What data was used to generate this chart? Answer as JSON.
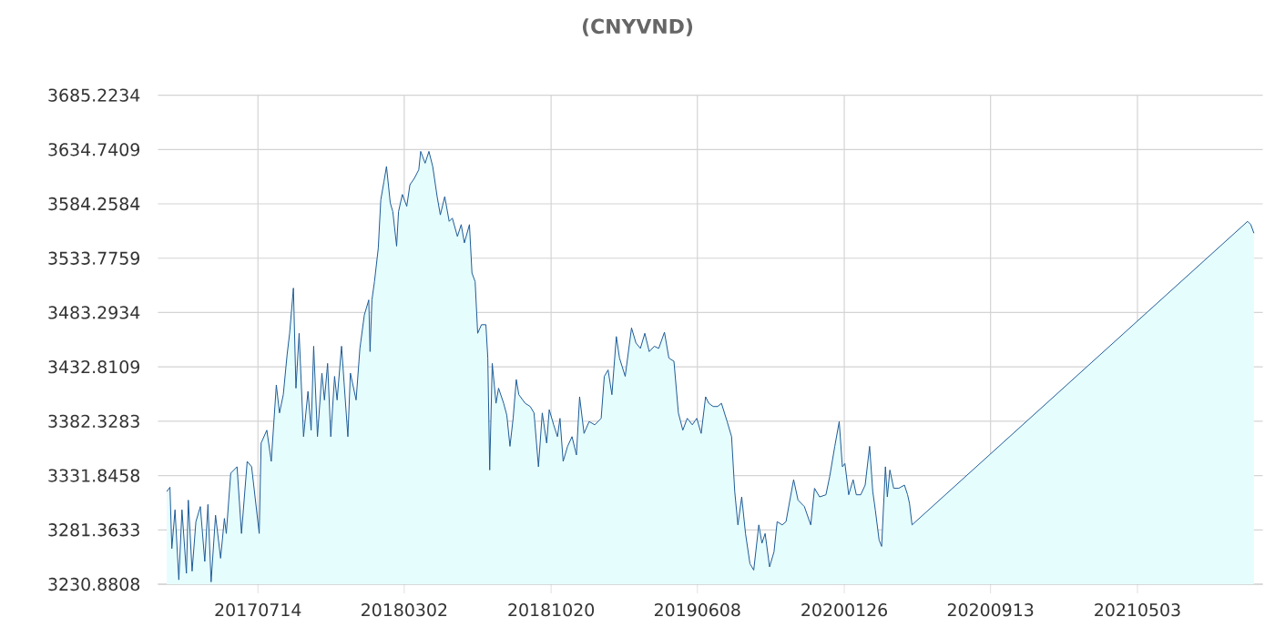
{
  "chart_data": {
    "type": "area",
    "title": "(CNYVND)",
    "x": [
      "2017-02-20",
      "2017-02-25",
      "2017-02-28",
      "2017-03-05",
      "2017-03-11",
      "2017-03-16",
      "2017-03-23",
      "2017-03-26",
      "2017-04-01",
      "2017-04-07",
      "2017-04-14",
      "2017-04-21",
      "2017-04-26",
      "2017-05-01",
      "2017-05-08",
      "2017-05-16",
      "2017-05-22",
      "2017-05-25",
      "2017-06-01",
      "2017-06-11",
      "2017-06-18",
      "2017-06-27",
      "2017-07-04",
      "2017-07-16",
      "2017-07-19",
      "2017-07-28",
      "2017-08-04",
      "2017-08-12",
      "2017-08-17",
      "2017-08-23",
      "2017-08-29",
      "2017-09-02",
      "2017-09-08",
      "2017-09-12",
      "2017-09-17",
      "2017-09-24",
      "2017-10-01",
      "2017-10-06",
      "2017-10-10",
      "2017-10-16",
      "2017-10-23",
      "2017-10-27",
      "2017-11-01",
      "2017-11-06",
      "2017-11-12",
      "2017-11-16",
      "2017-11-23",
      "2017-12-03",
      "2017-12-07",
      "2017-12-16",
      "2017-12-22",
      "2017-12-29",
      "2018-01-05",
      "2018-01-07",
      "2018-01-10",
      "2018-01-14",
      "2018-01-20",
      "2018-01-24",
      "2018-01-29",
      "2018-02-02",
      "2018-02-08",
      "2018-02-12",
      "2018-02-18",
      "2018-02-21",
      "2018-02-27",
      "2018-03-06",
      "2018-03-11",
      "2018-03-18",
      "2018-03-25",
      "2018-03-28",
      "2018-04-04",
      "2018-04-10",
      "2018-04-16",
      "2018-04-23",
      "2018-04-28",
      "2018-05-05",
      "2018-05-12",
      "2018-05-17",
      "2018-05-25",
      "2018-05-31",
      "2018-06-05",
      "2018-06-13",
      "2018-06-17",
      "2018-06-22",
      "2018-06-26",
      "2018-07-02",
      "2018-07-09",
      "2018-07-12",
      "2018-07-15",
      "2018-07-19",
      "2018-07-25",
      "2018-07-29",
      "2018-08-06",
      "2018-08-11",
      "2018-08-16",
      "2018-08-21",
      "2018-08-26",
      "2018-08-30",
      "2018-09-09",
      "2018-09-17",
      "2018-09-23",
      "2018-09-30",
      "2018-10-06",
      "2018-10-13",
      "2018-10-17",
      "2018-10-24",
      "2018-10-30",
      "2018-11-03",
      "2018-11-08",
      "2018-11-15",
      "2018-11-22",
      "2018-11-29",
      "2018-12-04",
      "2018-12-11",
      "2018-12-19",
      "2018-12-28",
      "2019-01-07",
      "2019-01-12",
      "2019-01-18",
      "2019-01-24",
      "2019-01-31",
      "2019-02-05",
      "2019-02-14",
      "2019-02-24",
      "2019-03-03",
      "2019-03-10",
      "2019-03-17",
      "2019-03-24",
      "2019-04-01",
      "2019-04-08",
      "2019-04-17",
      "2019-04-24",
      "2019-05-02",
      "2019-05-09",
      "2019-05-16",
      "2019-05-23",
      "2019-05-31",
      "2019-06-07",
      "2019-06-14",
      "2019-06-21",
      "2019-06-26",
      "2019-07-03",
      "2019-07-10",
      "2019-07-16",
      "2019-07-25",
      "2019-08-01",
      "2019-08-06",
      "2019-08-11",
      "2019-08-17",
      "2019-08-23",
      "2019-08-30",
      "2019-09-05",
      "2019-09-13",
      "2019-09-18",
      "2019-09-23",
      "2019-09-30",
      "2019-10-07",
      "2019-10-12",
      "2019-10-20",
      "2019-10-26",
      "2019-11-02",
      "2019-11-07",
      "2019-11-14",
      "2019-11-24",
      "2019-12-04",
      "2019-12-10",
      "2019-12-18",
      "2019-12-28",
      "2020-01-03",
      "2020-01-11",
      "2020-01-18",
      "2020-01-23",
      "2020-01-27",
      "2020-02-02",
      "2020-02-09",
      "2020-02-14",
      "2020-02-21",
      "2020-02-28",
      "2020-03-06",
      "2020-03-11",
      "2020-03-15",
      "2020-03-21",
      "2020-03-25",
      "2020-03-31",
      "2020-04-03",
      "2020-04-07",
      "2020-04-13",
      "2020-04-21",
      "2020-04-30",
      "2020-05-05",
      "2020-05-08",
      "2020-05-12",
      "2021-10-24",
      "2021-10-29",
      "2021-11-03"
    ],
    "values": [
      3317,
      3321,
      3264,
      3300,
      3235,
      3300,
      3241,
      3309,
      3243,
      3289,
      3303,
      3252,
      3305,
      3233,
      3295,
      3255,
      3292,
      3278,
      3334,
      3340,
      3278,
      3345,
      3340,
      3278,
      3362,
      3374,
      3345,
      3416,
      3390,
      3407,
      3444,
      3464,
      3506,
      3413,
      3464,
      3368,
      3410,
      3374,
      3452,
      3368,
      3427,
      3402,
      3436,
      3368,
      3424,
      3402,
      3452,
      3368,
      3427,
      3402,
      3450,
      3481,
      3495,
      3447,
      3495,
      3512,
      3543,
      3588,
      3605,
      3619,
      3585,
      3577,
      3545,
      3577,
      3593,
      3582,
      3602,
      3608,
      3616,
      3633,
      3622,
      3633,
      3619,
      3591,
      3574,
      3591,
      3568,
      3571,
      3554,
      3565,
      3548,
      3565,
      3520,
      3512,
      3464,
      3472,
      3472,
      3441,
      3337,
      3436,
      3399,
      3413,
      3399,
      3388,
      3359,
      3385,
      3421,
      3407,
      3399,
      3396,
      3390,
      3340,
      3390,
      3362,
      3393,
      3379,
      3368,
      3385,
      3345,
      3359,
      3368,
      3351,
      3405,
      3371,
      3382,
      3379,
      3385,
      3424,
      3430,
      3407,
      3461,
      3441,
      3424,
      3469,
      3455,
      3450,
      3464,
      3447,
      3452,
      3450,
      3465,
      3441,
      3438,
      3390,
      3374,
      3385,
      3379,
      3385,
      3371,
      3405,
      3399,
      3396,
      3396,
      3399,
      3382,
      3368,
      3317,
      3286,
      3312,
      3278,
      3250,
      3244,
      3286,
      3269,
      3278,
      3247,
      3261,
      3289,
      3286,
      3289,
      3312,
      3328,
      3309,
      3303,
      3286,
      3320,
      3312,
      3314,
      3331,
      3359,
      3382,
      3340,
      3343,
      3314,
      3328,
      3314,
      3314,
      3323,
      3359,
      3317,
      3300,
      3272,
      3266,
      3340,
      3312,
      3337,
      3320,
      3320,
      3323,
      3314,
      3306,
      3286,
      3568,
      3565,
      3557
    ],
    "color": "#1d5a96",
    "xlim": [
      "2017-02-06",
      "2021-11-17"
    ],
    "xticks": [
      {
        "value": "2017-07-14",
        "label": "20170714"
      },
      {
        "value": "2018-03-02",
        "label": "20180302"
      },
      {
        "value": "2018-10-20",
        "label": "20181020"
      },
      {
        "value": "2019-06-08",
        "label": "20190608"
      },
      {
        "value": "2020-01-26",
        "label": "20200126"
      },
      {
        "value": "2020-09-13",
        "label": "20200913"
      },
      {
        "value": "2021-05-03",
        "label": "20210503"
      }
    ],
    "ylim": [
      3230.8808,
      3685.2234
    ],
    "yticks": [
      3230.8808,
      3281.3633,
      3331.8458,
      3382.3283,
      3432.8109,
      3483.2934,
      3533.7759,
      3584.2584,
      3634.7409,
      3685.2234
    ],
    "grid": true
  }
}
